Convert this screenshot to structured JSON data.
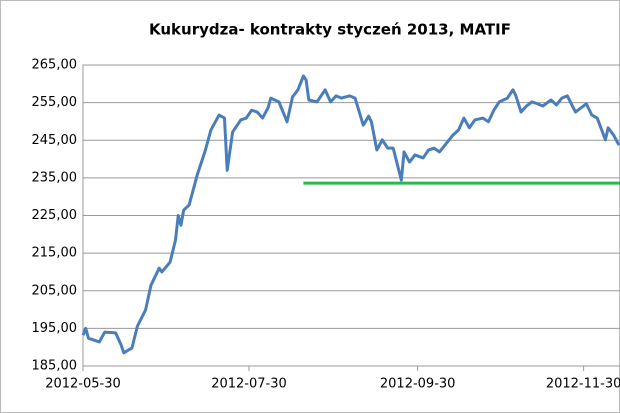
{
  "chart_data": {
    "type": "line",
    "title": "Kukurydza- kontrakty styczeń 2013, MATIF",
    "x": [
      "2012-05-30",
      "2012-05-31",
      "2012-06-01",
      "2012-06-05",
      "2012-06-07",
      "2012-06-11",
      "2012-06-13",
      "2012-06-14",
      "2012-06-17",
      "2012-06-19",
      "2012-06-22",
      "2012-06-24",
      "2012-06-27",
      "2012-06-28",
      "2012-07-01",
      "2012-07-03",
      "2012-07-04",
      "2012-07-05",
      "2012-07-06",
      "2012-07-08",
      "2012-07-11",
      "2012-07-14",
      "2012-07-16",
      "2012-07-19",
      "2012-07-21",
      "2012-07-22",
      "2012-07-24",
      "2012-07-27",
      "2012-07-29",
      "2012-07-31",
      "2012-08-02",
      "2012-08-04",
      "2012-08-06",
      "2012-08-07",
      "2012-08-10",
      "2012-08-12",
      "2012-08-13",
      "2012-08-15",
      "2012-08-17",
      "2012-08-19",
      "2012-08-20",
      "2012-08-21",
      "2012-08-24",
      "2012-08-27",
      "2012-08-29",
      "2012-08-31",
      "2012-09-02",
      "2012-09-05",
      "2012-09-07",
      "2012-09-10",
      "2012-09-12",
      "2012-09-13",
      "2012-09-15",
      "2012-09-17",
      "2012-09-19",
      "2012-09-21",
      "2012-09-24",
      "2012-09-25",
      "2012-09-27",
      "2012-09-29",
      "2012-10-02",
      "2012-10-04",
      "2012-10-06",
      "2012-10-08",
      "2012-10-10",
      "2012-10-13",
      "2012-10-15",
      "2012-10-17",
      "2012-10-19",
      "2012-10-21",
      "2012-10-24",
      "2012-10-26",
      "2012-10-28",
      "2012-10-30",
      "2012-11-02",
      "2012-11-04",
      "2012-11-05",
      "2012-11-07",
      "2012-11-09",
      "2012-11-11",
      "2012-11-13",
      "2012-11-15",
      "2012-11-18",
      "2012-11-20",
      "2012-11-22",
      "2012-11-24",
      "2012-11-27",
      "2012-11-29",
      "2012-12-01",
      "2012-12-03",
      "2012-12-05",
      "2012-12-08",
      "2012-12-09",
      "2012-12-11",
      "2012-12-13"
    ],
    "series": [
      {
        "name": "MATIF",
        "color": "#4a7ebb",
        "values": [
          193.2,
          195,
          192.4,
          191.4,
          194,
          193.8,
          190.6,
          188.5,
          189.8,
          195.6,
          199.9,
          206.5,
          211,
          210,
          212.6,
          218.5,
          225,
          222.4,
          226.4,
          227.8,
          235.8,
          242.4,
          247.7,
          251.7,
          250.9,
          237,
          247.2,
          250.4,
          250.9,
          253,
          252.5,
          250.9,
          253.6,
          256.2,
          255.2,
          251.7,
          249.9,
          256.5,
          258.4,
          262.1,
          261,
          255.7,
          255.2,
          258.4,
          255.2,
          256.8,
          256.2,
          256.8,
          256.2,
          249,
          251.4,
          249.9,
          242.4,
          245.1,
          242.9,
          242.9,
          234.4,
          241.9,
          239.2,
          241.1,
          240.3,
          242.4,
          242.9,
          241.9,
          243.7,
          246.4,
          247.7,
          250.9,
          248.3,
          250.4,
          250.9,
          249.9,
          253,
          255.2,
          256.2,
          258.4,
          257,
          252.5,
          254.1,
          255.2,
          254.7,
          254.1,
          255.7,
          254.4,
          256.2,
          256.8,
          252.5,
          253.6,
          254.7,
          251.7,
          250.9,
          245.1,
          248.3,
          246.4,
          243.7
        ]
      }
    ],
    "xlim": [
      "2012-05-30",
      "2012-12-13"
    ],
    "xticks": [
      "2012-05-30",
      "2012-07-30",
      "2012-09-30",
      "2012-11-30"
    ],
    "ylim": [
      185,
      265
    ],
    "yticks": [
      {
        "value": 185,
        "label": "185,00"
      },
      {
        "value": 195,
        "label": "195,00"
      },
      {
        "value": 205,
        "label": "205,00"
      },
      {
        "value": 215,
        "label": "215,00"
      },
      {
        "value": 225,
        "label": "225,00"
      },
      {
        "value": 235,
        "label": "235,00"
      },
      {
        "value": 245,
        "label": "245,00"
      },
      {
        "value": 255,
        "label": "255,00"
      },
      {
        "value": 265,
        "label": "265,00"
      }
    ],
    "grid": true,
    "reference_line": {
      "from": "2012-08-19",
      "value": 233.6,
      "color": "#2db84b"
    }
  }
}
